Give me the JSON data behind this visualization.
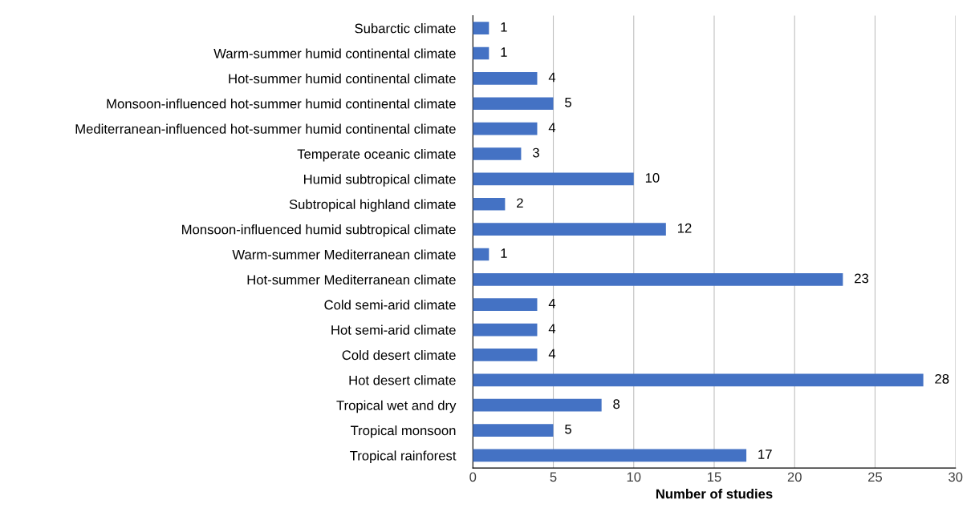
{
  "chart_data": {
    "type": "bar",
    "orientation": "horizontal",
    "xlabel": "Number of studies",
    "categories": [
      "Subarctic climate",
      "Warm-summer humid continental climate",
      "Hot-summer humid continental climate",
      "Monsoon-influenced hot-summer humid continental climate",
      "Mediterranean-influenced hot-summer humid continental climate",
      "Temperate oceanic climate",
      "Humid subtropical climate",
      "Subtropical highland climate",
      "Monsoon-influenced humid subtropical climate",
      "Warm-summer Mediterranean climate",
      "Hot-summer Mediterranean climate",
      "Cold semi-arid climate",
      "Hot semi-arid climate",
      "Cold desert climate",
      "Hot desert climate",
      "Tropical wet and dry",
      "Tropical monsoon",
      "Tropical rainforest"
    ],
    "values": [
      1,
      1,
      4,
      5,
      4,
      3,
      10,
      2,
      12,
      1,
      23,
      4,
      4,
      4,
      28,
      8,
      5,
      17
    ],
    "color": "#4472c4",
    "xlim": [
      0,
      30
    ],
    "xticks": [
      0,
      5,
      10,
      15,
      20,
      25,
      30
    ],
    "grid": "x",
    "data_labels": true
  }
}
